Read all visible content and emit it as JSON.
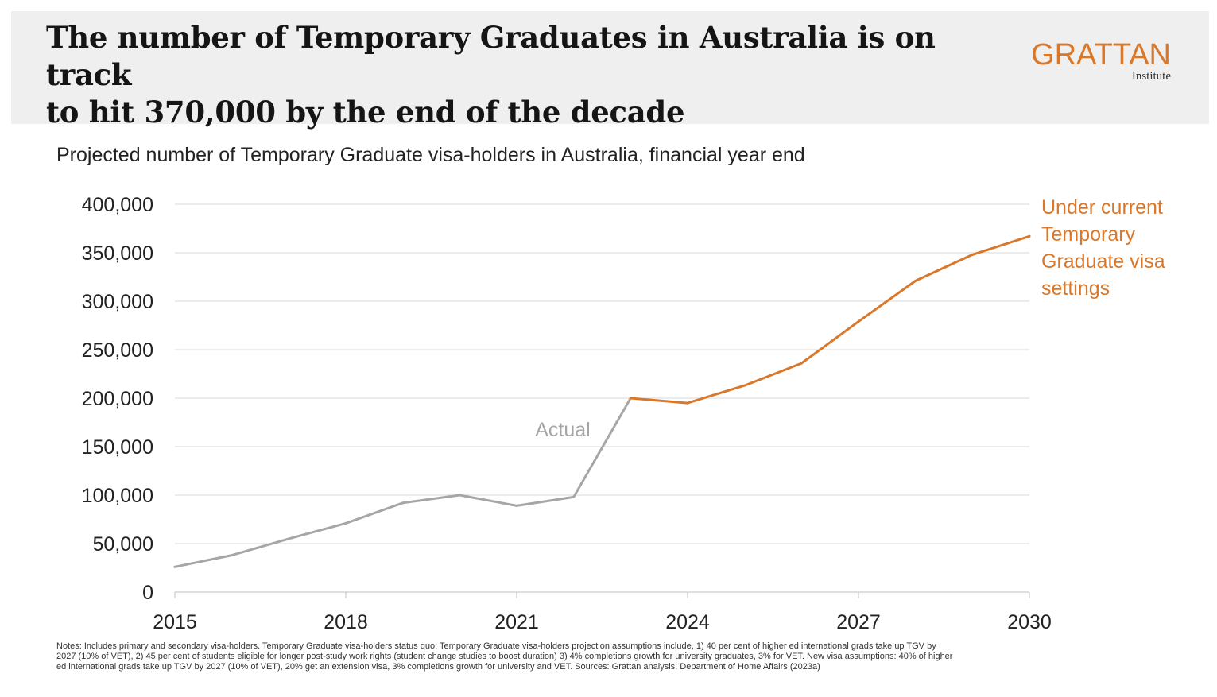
{
  "header": {
    "title_lines": [
      "The number of Temporary Graduates in Australia is on track",
      "to hit 370,000 by the end of the decade"
    ],
    "logo_main": "GRATTAN",
    "logo_sub": "Institute"
  },
  "subtitle": "Projected number of Temporary Graduate visa-holders in Australia, financial year end",
  "colors": {
    "actual": "#a6a6a6",
    "projection": "#d9782b",
    "grid": "#d9d9d9",
    "axis_text": "#222222"
  },
  "chart_data": {
    "type": "line",
    "title": "",
    "xlabel": "",
    "ylabel": "",
    "xlim": [
      2015,
      2030
    ],
    "ylim": [
      0,
      400000
    ],
    "x_ticks": [
      "2015",
      "2018",
      "2021",
      "2024",
      "2027",
      "2030"
    ],
    "y_ticks": [
      "0",
      "50,000",
      "100,000",
      "150,000",
      "200,000",
      "250,000",
      "300,000",
      "350,000",
      "400,000"
    ],
    "grid": "horizontal",
    "series": [
      {
        "name": "Actual",
        "color": "#a6a6a6",
        "x": [
          2015,
          2016,
          2017,
          2018,
          2019,
          2020,
          2021,
          2022,
          2023
        ],
        "y": [
          26000,
          38000,
          55000,
          71000,
          92000,
          100000,
          89000,
          98000,
          200000
        ]
      },
      {
        "name": "Under current Temporary Graduate visa settings",
        "label_lines": [
          "Under current",
          "Temporary",
          "Graduate visa",
          "settings"
        ],
        "color": "#d9782b",
        "x": [
          2023,
          2024,
          2025,
          2026,
          2027,
          2028,
          2029,
          2030
        ],
        "y": [
          200000,
          195000,
          213000,
          236000,
          279000,
          321000,
          348000,
          367000
        ]
      }
    ]
  },
  "notes": [
    "Notes: Includes primary and secondary visa-holders. Temporary Graduate visa-holders status quo: Temporary Graduate visa-holders projection assumptions include, 1) 40 per cent of higher ed international grads take up TGV by",
    "2027 (10% of VET), 2) 45 per cent of students eligible for longer post-study work rights (student change studies to boost duration) 3) 4% completions growth for university graduates, 3% for VET. New visa assumptions: 40% of higher",
    "ed international grads take up TGV by 2027 (10% of VET), 20% get an extension visa, 3% completions growth for university and VET.  Sources: Grattan analysis; Department of Home Affairs (2023a)"
  ]
}
